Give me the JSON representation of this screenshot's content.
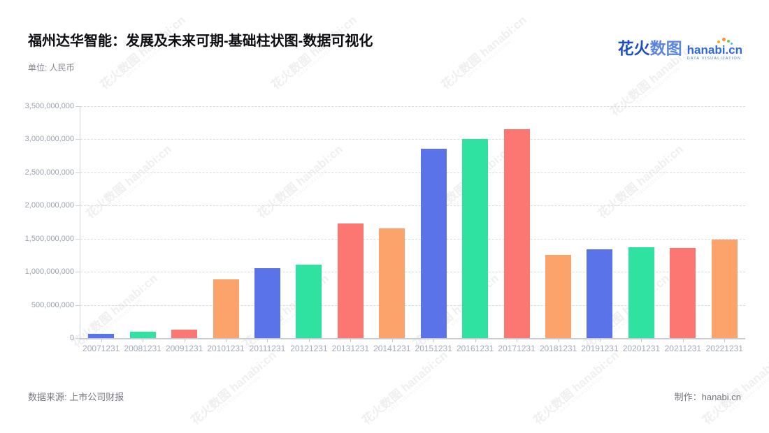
{
  "header": {
    "title": "福州达华智能：发展及未来可期-基础柱状图-数据可视化",
    "unit_label": "单位: 人民币"
  },
  "logo": {
    "cn_part1": "花火",
    "cn_part2": "数图",
    "domain": "hanabi.cn",
    "tagline": "DATA VISUALIZATION"
  },
  "watermark": {
    "text": "花火数图 hanabi:cn",
    "tagline": "DATA VISUALIZATION"
  },
  "footer": {
    "source": "数据来源: 上市公司财报",
    "credit": "制作：hanabi.cn"
  },
  "chart_data": {
    "type": "bar",
    "title": "福州达华智能：发展及未来可期-基础柱状图-数据可视化",
    "unit": "人民币",
    "categories": [
      "20071231",
      "20081231",
      "20091231",
      "20101231",
      "20111231",
      "20121231",
      "20131231",
      "20141231",
      "20151231",
      "20161231",
      "20171231",
      "20181231",
      "20191231",
      "20201231",
      "20211231",
      "20221231"
    ],
    "values": [
      60000000,
      100000000,
      125000000,
      890000000,
      1050000000,
      1110000000,
      1730000000,
      1660000000,
      2860000000,
      3000000000,
      3150000000,
      1250000000,
      1340000000,
      1370000000,
      1360000000,
      1490000000
    ],
    "xlabel": "",
    "ylabel": "",
    "ylim": [
      0,
      3500000000
    ],
    "ytick_interval": 500000000,
    "grid": true,
    "legend": false,
    "bar_colors": [
      "#5b73e8",
      "#2fe2a2",
      "#fc7672",
      "#fca36b"
    ]
  }
}
